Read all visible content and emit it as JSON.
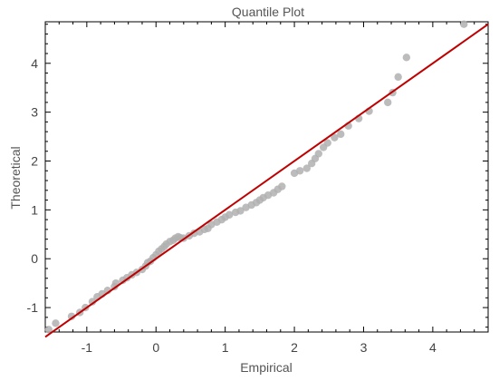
{
  "chart_data": {
    "type": "scatter",
    "title": "Quantile Plot",
    "xlabel": "Empirical",
    "ylabel": "Theoretical",
    "xlim": [
      -1.6,
      4.8
    ],
    "ylim": [
      -1.5,
      4.85
    ],
    "xticks": [
      -1,
      0,
      1,
      2,
      3,
      4
    ],
    "yticks": [
      -1,
      0,
      1,
      2,
      3,
      4
    ],
    "grid": false,
    "point_color": "#b0b0b0",
    "line_color": "#c00000",
    "reference_line": {
      "x": [
        -1.6,
        4.8
      ],
      "y": [
        -1.6,
        4.8
      ]
    },
    "series": [
      {
        "values": [
          [
            -1.55,
            -1.45
          ],
          [
            -1.45,
            -1.32
          ],
          [
            -1.22,
            -1.18
          ],
          [
            -1.1,
            -1.1
          ],
          [
            -1.02,
            -1.0
          ],
          [
            -0.92,
            -0.88
          ],
          [
            -0.85,
            -0.78
          ],
          [
            -0.78,
            -0.72
          ],
          [
            -0.7,
            -0.65
          ],
          [
            -0.6,
            -0.57
          ],
          [
            -0.58,
            -0.5
          ],
          [
            -0.48,
            -0.44
          ],
          [
            -0.42,
            -0.39
          ],
          [
            -0.35,
            -0.33
          ],
          [
            -0.28,
            -0.28
          ],
          [
            -0.2,
            -0.22
          ],
          [
            -0.15,
            -0.15
          ],
          [
            -0.12,
            -0.08
          ],
          [
            -0.08,
            -0.05
          ],
          [
            -0.04,
            0.02
          ],
          [
            0.0,
            0.08
          ],
          [
            0.04,
            0.15
          ],
          [
            0.08,
            0.2
          ],
          [
            0.12,
            0.25
          ],
          [
            0.15,
            0.3
          ],
          [
            0.2,
            0.35
          ],
          [
            0.25,
            0.38
          ],
          [
            0.28,
            0.42
          ],
          [
            0.32,
            0.45
          ],
          [
            0.35,
            0.43
          ],
          [
            0.4,
            0.42
          ],
          [
            0.48,
            0.47
          ],
          [
            0.55,
            0.52
          ],
          [
            0.63,
            0.55
          ],
          [
            0.7,
            0.6
          ],
          [
            0.75,
            0.62
          ],
          [
            0.8,
            0.7
          ],
          [
            0.88,
            0.75
          ],
          [
            0.95,
            0.8
          ],
          [
            1.0,
            0.85
          ],
          [
            1.06,
            0.9
          ],
          [
            1.15,
            0.95
          ],
          [
            1.22,
            0.98
          ],
          [
            1.3,
            1.05
          ],
          [
            1.38,
            1.1
          ],
          [
            1.45,
            1.15
          ],
          [
            1.5,
            1.2
          ],
          [
            1.55,
            1.25
          ],
          [
            1.62,
            1.3
          ],
          [
            1.7,
            1.35
          ],
          [
            1.76,
            1.42
          ],
          [
            1.82,
            1.48
          ],
          [
            2.0,
            1.75
          ],
          [
            2.08,
            1.8
          ],
          [
            2.18,
            1.85
          ],
          [
            2.25,
            1.95
          ],
          [
            2.3,
            2.05
          ],
          [
            2.35,
            2.15
          ],
          [
            2.42,
            2.28
          ],
          [
            2.48,
            2.37
          ],
          [
            2.58,
            2.48
          ],
          [
            2.67,
            2.55
          ],
          [
            2.78,
            2.72
          ],
          [
            2.93,
            2.87
          ],
          [
            3.08,
            3.02
          ],
          [
            3.35,
            3.2
          ],
          [
            3.42,
            3.4
          ],
          [
            3.5,
            3.72
          ],
          [
            3.62,
            4.12
          ],
          [
            4.45,
            4.8
          ]
        ]
      }
    ]
  }
}
